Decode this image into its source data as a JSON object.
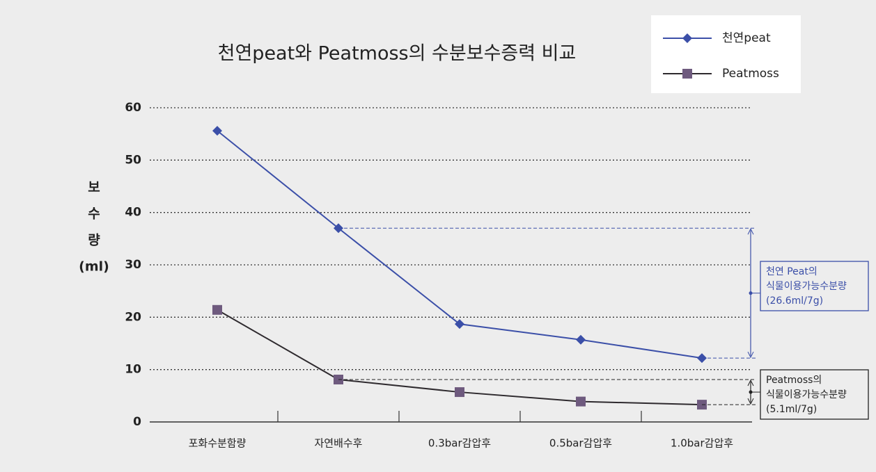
{
  "chart_data": {
    "type": "line",
    "title": "천연peat와 Peatmoss의 수분보수증력 비교",
    "y_label": [
      "보",
      "수",
      "량",
      "(ml)"
    ],
    "categories": [
      "포화수분함량",
      "자연배수후",
      "0.3bar감압후",
      "0.5bar감압후",
      "1.0bar감압후"
    ],
    "series": [
      {
        "name": "천연peat",
        "color": "#3b4fa8",
        "marker": "diamond",
        "values": [
          55.6,
          37.0,
          18.7,
          15.7,
          12.2
        ]
      },
      {
        "name": "Peatmoss",
        "color": "#2e2a2e",
        "marker": "square",
        "markerColor": "#6e5a7e",
        "values": [
          21.4,
          8.1,
          5.7,
          3.9,
          3.3
        ]
      }
    ],
    "ylim": [
      0,
      60
    ],
    "yticks": [
      0,
      10,
      20,
      30,
      40,
      50,
      60
    ],
    "grid": true,
    "legend": "upper right",
    "annotations": [
      {
        "lines": [
          "천연 Peat의",
          "식물이용가능수분량",
          "(26.6ml/7g)"
        ],
        "color": "#3b4fa8"
      },
      {
        "lines": [
          "Peatmoss의",
          "식물이용가능수분량",
          "(5.1ml/7g)"
        ],
        "color": "#222222"
      }
    ]
  }
}
